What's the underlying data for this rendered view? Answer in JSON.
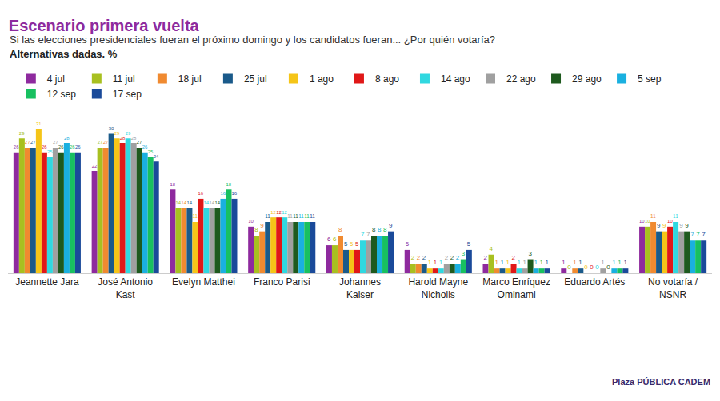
{
  "chart_data": {
    "type": "bar",
    "title": "Escenario primera vuelta",
    "subtitle": "Si las elecciones presidenciales fueran el próximo domingo y los candidatos fueran... ¿Por quién votaría?",
    "annotations": [
      "Alternativas dadas. %",
      "Plaza PÚBLICA CADEM"
    ],
    "categories": [
      "Jeannette Jara",
      "José Antonio Kast",
      "Evelyn Matthei",
      "Franco Parisi",
      "Johannes Kaiser",
      "Harold Mayne Nicholls",
      "Marco Enríquez Ominami",
      "Eduardo Artés",
      "No votaría / NSNR"
    ],
    "series": [
      {
        "name": "4 jul",
        "color": "#8e2a9e",
        "values": [
          26,
          22,
          18,
          10,
          6,
          5,
          2,
          1,
          10
        ]
      },
      {
        "name": "11 jul",
        "color": "#a8c020",
        "values": [
          29,
          27,
          14,
          8,
          6,
          2,
          4,
          0,
          10
        ]
      },
      {
        "name": "18 jul",
        "color": "#f08a30",
        "values": [
          27,
          27,
          14,
          9,
          8,
          2,
          1,
          1,
          11
        ]
      },
      {
        "name": "25 jul",
        "color": "#1a5a8a",
        "values": [
          27,
          30,
          14,
          11,
          5,
          2,
          1,
          1,
          9
        ]
      },
      {
        "name": "1 ago",
        "color": "#f5c518",
        "values": [
          31,
          29,
          11,
          12,
          5,
          1,
          1,
          0,
          9
        ]
      },
      {
        "name": "8 ago",
        "color": "#e01818",
        "values": [
          26,
          28,
          16,
          12,
          5,
          1,
          2,
          0,
          10
        ]
      },
      {
        "name": "14 ago",
        "color": "#30d8e0",
        "values": [
          25,
          29,
          14,
          12,
          7,
          1,
          1,
          0,
          11
        ]
      },
      {
        "name": "22 ago",
        "color": "#a0a0a0",
        "values": [
          27,
          28,
          14,
          11,
          7,
          2,
          1,
          1,
          9
        ]
      },
      {
        "name": "29 ago",
        "color": "#1e5a1e",
        "values": [
          26,
          27,
          14,
          11,
          8,
          2,
          3,
          0,
          9
        ]
      },
      {
        "name": "5 sep",
        "color": "#1ab0e0",
        "values": [
          28,
          26,
          16,
          11,
          8,
          2,
          1,
          1,
          7
        ]
      },
      {
        "name": "12 sep",
        "color": "#18c060",
        "values": [
          26,
          25,
          18,
          11,
          8,
          3,
          1,
          1,
          7
        ]
      },
      {
        "name": "17 sep",
        "color": "#1a4a9a",
        "values": [
          26,
          24,
          16,
          11,
          9,
          5,
          1,
          1,
          7
        ]
      }
    ],
    "ylim": [
      0,
      33
    ],
    "grid": false,
    "legend": "top",
    "data_labels": true,
    "tick_labels": "x"
  }
}
